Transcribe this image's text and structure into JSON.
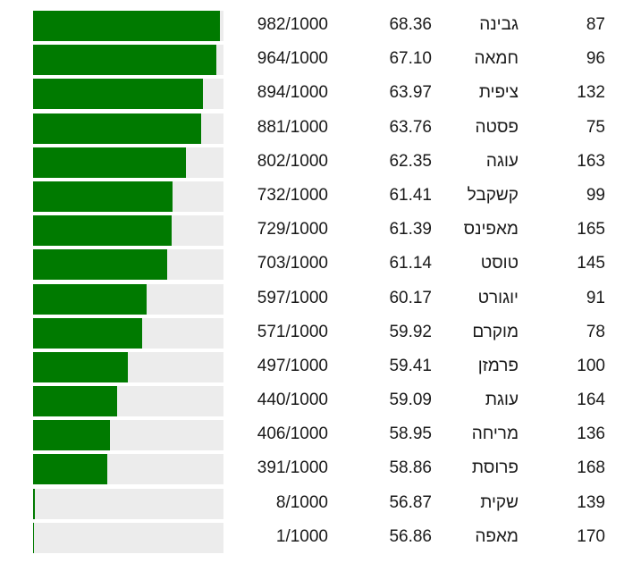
{
  "colors": {
    "bar_fill": "#007a00",
    "bar_track": "#ececec",
    "text": "#1a1a1a"
  },
  "score_denominator": 1000,
  "rows": [
    {
      "score": "982/1000",
      "score_value": 982,
      "value": "68.36",
      "name": "גבינה",
      "number": "87"
    },
    {
      "score": "964/1000",
      "score_value": 964,
      "value": "67.10",
      "name": "חמאה",
      "number": "96"
    },
    {
      "score": "894/1000",
      "score_value": 894,
      "value": "63.97",
      "name": "ציפית",
      "number": "132"
    },
    {
      "score": "881/1000",
      "score_value": 881,
      "value": "63.76",
      "name": "פסטה",
      "number": "75"
    },
    {
      "score": "802/1000",
      "score_value": 802,
      "value": "62.35",
      "name": "עוגה",
      "number": "163"
    },
    {
      "score": "732/1000",
      "score_value": 732,
      "value": "61.41",
      "name": "קשקבל",
      "number": "99"
    },
    {
      "score": "729/1000",
      "score_value": 729,
      "value": "61.39",
      "name": "מאפינס",
      "number": "165"
    },
    {
      "score": "703/1000",
      "score_value": 703,
      "value": "61.14",
      "name": "טוסט",
      "number": "145"
    },
    {
      "score": "597/1000",
      "score_value": 597,
      "value": "60.17",
      "name": "יוגורט",
      "number": "91"
    },
    {
      "score": "571/1000",
      "score_value": 571,
      "value": "59.92",
      "name": "מוקרם",
      "number": "78"
    },
    {
      "score": "497/1000",
      "score_value": 497,
      "value": "59.41",
      "name": "פרמזן",
      "number": "100"
    },
    {
      "score": "440/1000",
      "score_value": 440,
      "value": "59.09",
      "name": "עוגת",
      "number": "164"
    },
    {
      "score": "406/1000",
      "score_value": 406,
      "value": "58.95",
      "name": "מריחה",
      "number": "136"
    },
    {
      "score": "391/1000",
      "score_value": 391,
      "value": "58.86",
      "name": "פרוסת",
      "number": "168"
    },
    {
      "score": "8/1000",
      "score_value": 8,
      "value": "56.87",
      "name": "שקית",
      "number": "139"
    },
    {
      "score": "1/1000",
      "score_value": 1,
      "value": "56.86",
      "name": "מאפה",
      "number": "170"
    }
  ],
  "chart_data": {
    "type": "bar",
    "orientation": "horizontal",
    "title": "",
    "xlabel": "",
    "ylabel": "",
    "xlim": [
      0,
      1000
    ],
    "grid": false,
    "legend": null,
    "categories": [
      "גבינה",
      "חמאה",
      "ציפית",
      "פסטה",
      "עוגה",
      "קשקבל",
      "מאפינס",
      "טוסט",
      "יוגורט",
      "מוקרם",
      "פרמזן",
      "עוגת",
      "מריחה",
      "פרוסת",
      "שקית",
      "מאפה"
    ],
    "values": [
      982,
      964,
      894,
      881,
      802,
      732,
      729,
      703,
      597,
      571,
      497,
      440,
      406,
      391,
      8,
      1
    ],
    "secondary_values": [
      68.36,
      67.1,
      63.97,
      63.76,
      62.35,
      61.41,
      61.39,
      61.14,
      60.17,
      59.92,
      59.41,
      59.09,
      58.95,
      58.86,
      56.87,
      56.86
    ],
    "ids": [
      87,
      96,
      132,
      75,
      163,
      99,
      165,
      145,
      91,
      78,
      100,
      164,
      136,
      168,
      139,
      170
    ]
  }
}
